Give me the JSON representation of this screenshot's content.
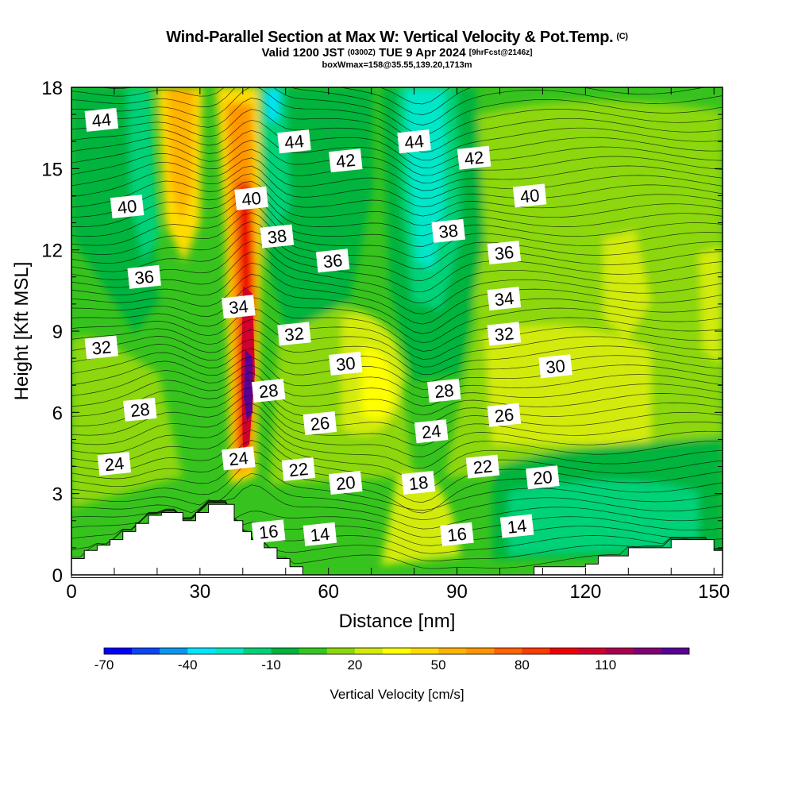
{
  "header": {
    "title": "Wind-Parallel Section at Max W: Vertical Velocity & Pot.Temp.",
    "copyright": "(C)",
    "valid_prefix": "Valid 1200 JST",
    "valid_utc": "(0300Z)",
    "valid_date": "TUE 9 Apr 2024",
    "forecast": "[9hrFcst@2146z]",
    "box_info": "boxWmax=158@35.55,139.20,1713m"
  },
  "colorbar": {
    "label": "Vertical Velocity [cm/s]",
    "tick_labels": [
      "-70",
      "-40",
      "-10",
      "20",
      "50",
      "80",
      "110"
    ],
    "colors": [
      "#0000ff",
      "#0a46f5",
      "#0a96f0",
      "#00e6ff",
      "#00e6c8",
      "#00d278",
      "#00b43c",
      "#32c81e",
      "#8cd70a",
      "#d2eb0a",
      "#ffff00",
      "#ffdc00",
      "#ffb400",
      "#ff9600",
      "#ff6400",
      "#ff3c00",
      "#f00000",
      "#d2002d",
      "#aa0050",
      "#820078",
      "#5a0096"
    ]
  },
  "chart_data": {
    "type": "heatmap",
    "title": "Wind-Parallel Section at Max W: Vertical Velocity & Pot.Temp.",
    "xlabel": "Distance [nm]",
    "ylabel": "Height [Kft MSL]",
    "xlim": [
      0,
      152
    ],
    "ylim": [
      0,
      18
    ],
    "x_ticks": [
      0,
      30,
      60,
      90,
      120,
      150
    ],
    "x_tick_labels": [
      "0",
      "30",
      "60",
      "90",
      "120",
      "150"
    ],
    "y_ticks": [
      0,
      3,
      6,
      9,
      12,
      15,
      18
    ],
    "y_tick_labels": [
      "0",
      "3",
      "6",
      "9",
      "12",
      "15",
      "18"
    ],
    "fill_variable": "Vertical Velocity [cm/s]",
    "contour_variable": "Potential Temperature [C]",
    "updraft_max_cm_s": 158,
    "updraft_core": {
      "x": 42,
      "y_range": [
        3,
        12
      ]
    },
    "downdraft_cores": [
      {
        "x": 47,
        "y_range": [
          15,
          18
        ]
      },
      {
        "x": 80,
        "y_range": [
          9,
          17
        ]
      }
    ],
    "terrain": [
      {
        "x": 0,
        "y": 0.6
      },
      {
        "x": 3,
        "y": 0.9
      },
      {
        "x": 6,
        "y": 1.1
      },
      {
        "x": 9,
        "y": 1.3
      },
      {
        "x": 12,
        "y": 1.6
      },
      {
        "x": 15,
        "y": 1.9
      },
      {
        "x": 18,
        "y": 2.2
      },
      {
        "x": 21,
        "y": 2.3
      },
      {
        "x": 24,
        "y": 2.3
      },
      {
        "x": 26,
        "y": 2.0
      },
      {
        "x": 29,
        "y": 2.3
      },
      {
        "x": 32,
        "y": 2.6
      },
      {
        "x": 35,
        "y": 2.6
      },
      {
        "x": 38,
        "y": 2.0
      },
      {
        "x": 40,
        "y": 1.6
      },
      {
        "x": 42,
        "y": 1.3
      },
      {
        "x": 45,
        "y": 1.0
      },
      {
        "x": 48,
        "y": 0.6
      },
      {
        "x": 51,
        "y": 0.3
      },
      {
        "x": 54,
        "y": 0.0
      },
      {
        "x": 106,
        "y": 0.0
      },
      {
        "x": 108,
        "y": 0.3
      },
      {
        "x": 120,
        "y": 0.4
      },
      {
        "x": 123,
        "y": 0.7
      },
      {
        "x": 130,
        "y": 1.0
      },
      {
        "x": 140,
        "y": 1.3
      },
      {
        "x": 148,
        "y": 1.3
      },
      {
        "x": 150,
        "y": 0.9
      }
    ],
    "contour_labels": [
      {
        "text": "44",
        "x": 7,
        "y": 16.8
      },
      {
        "text": "44",
        "x": 52,
        "y": 16.0
      },
      {
        "text": "44",
        "x": 80,
        "y": 16.0
      },
      {
        "text": "42",
        "x": 64,
        "y": 15.3
      },
      {
        "text": "42",
        "x": 94,
        "y": 15.4
      },
      {
        "text": "40",
        "x": 13,
        "y": 13.6
      },
      {
        "text": "40",
        "x": 42,
        "y": 13.9
      },
      {
        "text": "40",
        "x": 107,
        "y": 14.0
      },
      {
        "text": "38",
        "x": 48,
        "y": 12.5
      },
      {
        "text": "38",
        "x": 88,
        "y": 12.7
      },
      {
        "text": "36",
        "x": 17,
        "y": 11.0
      },
      {
        "text": "36",
        "x": 61,
        "y": 11.6
      },
      {
        "text": "36",
        "x": 101,
        "y": 11.9
      },
      {
        "text": "34",
        "x": 39,
        "y": 9.9
      },
      {
        "text": "34",
        "x": 101,
        "y": 10.2
      },
      {
        "text": "32",
        "x": 7,
        "y": 8.4
      },
      {
        "text": "32",
        "x": 52,
        "y": 8.9
      },
      {
        "text": "32",
        "x": 101,
        "y": 8.9
      },
      {
        "text": "30",
        "x": 64,
        "y": 7.8
      },
      {
        "text": "30",
        "x": 113,
        "y": 7.7
      },
      {
        "text": "28",
        "x": 16,
        "y": 6.1
      },
      {
        "text": "28",
        "x": 46,
        "y": 6.8
      },
      {
        "text": "28",
        "x": 87,
        "y": 6.8
      },
      {
        "text": "26",
        "x": 58,
        "y": 5.6
      },
      {
        "text": "26",
        "x": 101,
        "y": 5.9
      },
      {
        "text": "24",
        "x": 10,
        "y": 4.1
      },
      {
        "text": "24",
        "x": 39,
        "y": 4.3
      },
      {
        "text": "24",
        "x": 84,
        "y": 5.3
      },
      {
        "text": "22",
        "x": 53,
        "y": 3.9
      },
      {
        "text": "22",
        "x": 96,
        "y": 4.0
      },
      {
        "text": "20",
        "x": 64,
        "y": 3.4
      },
      {
        "text": "20",
        "x": 110,
        "y": 3.6
      },
      {
        "text": "18",
        "x": 81,
        "y": 3.4
      },
      {
        "text": "16",
        "x": 46,
        "y": 1.6
      },
      {
        "text": "16",
        "x": 90,
        "y": 1.5
      },
      {
        "text": "14",
        "x": 58,
        "y": 1.5
      },
      {
        "text": "14",
        "x": 104,
        "y": 1.8
      }
    ]
  }
}
